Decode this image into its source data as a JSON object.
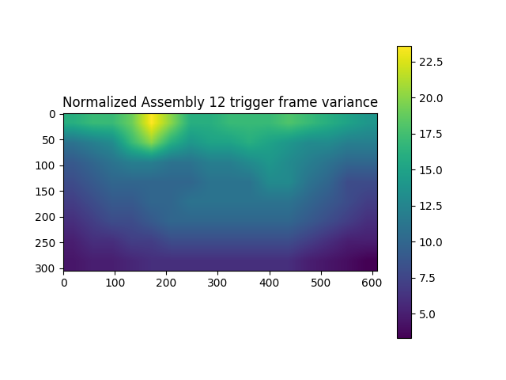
{
  "chart_data": {
    "type": "heatmap",
    "title": "Normalized Assembly 12 trigger frame variance",
    "xlim": [
      -0.5,
      609.5
    ],
    "ylim": [
      304.5,
      -0.5
    ],
    "xticks": [
      0,
      100,
      200,
      300,
      400,
      500,
      600
    ],
    "yticks": [
      0,
      50,
      100,
      150,
      200,
      250,
      300
    ],
    "cells": [
      [
        16,
        17,
        17,
        19,
        23.6,
        20,
        16,
        16,
        17,
        17,
        17,
        18,
        17,
        16,
        15,
        14
      ],
      [
        11,
        12,
        13,
        17,
        20,
        16,
        14,
        15,
        15,
        16,
        15,
        14,
        13,
        13,
        12,
        12
      ],
      [
        9,
        10,
        11,
        12,
        12,
        11,
        11,
        12,
        12,
        13,
        14,
        13,
        12,
        11,
        10,
        10
      ],
      [
        8,
        9,
        10,
        10,
        10,
        10,
        10,
        11,
        11,
        11,
        13,
        13,
        11,
        10,
        8,
        8
      ],
      [
        7,
        8,
        9,
        9,
        10,
        10,
        11,
        11,
        11,
        11,
        11,
        11,
        10,
        9,
        8,
        7
      ],
      [
        6,
        7,
        8,
        8,
        9,
        10,
        10,
        10,
        10,
        10,
        10,
        10,
        9,
        8,
        7,
        6
      ],
      [
        5,
        6,
        6,
        7,
        7,
        8,
        8,
        8,
        8,
        8,
        8,
        8,
        7,
        6,
        5,
        5
      ],
      [
        4.5,
        5,
        5,
        5.5,
        6,
        6,
        6,
        6,
        6,
        6,
        6,
        6,
        5,
        4.5,
        4,
        3.3
      ]
    ],
    "color_range": [
      3.3,
      23.6
    ],
    "color_ticks": [
      {
        "value": 5,
        "label": "5.0"
      },
      {
        "value": 7.5,
        "label": "7.5"
      },
      {
        "value": 10,
        "label": "10.0"
      },
      {
        "value": 12.5,
        "label": "12.5"
      },
      {
        "value": 15,
        "label": "15.0"
      },
      {
        "value": 17.5,
        "label": "17.5"
      },
      {
        "value": 20,
        "label": "20.0"
      },
      {
        "value": 22.5,
        "label": "22.5"
      }
    ]
  }
}
